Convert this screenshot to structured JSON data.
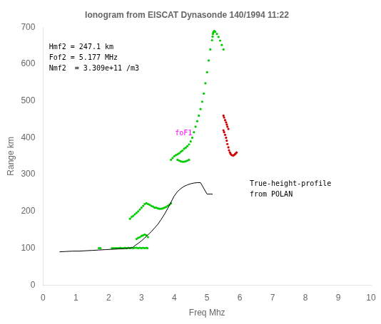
{
  "chart_data": {
    "type": "scatter",
    "title": "Ionogram from EISCAT Dynasonde 140/1994 11:22",
    "xlabel": "Freq Mhz",
    "ylabel": "Range km",
    "xlim": [
      0,
      10
    ],
    "ylim": [
      0,
      700
    ],
    "xticks": [
      0,
      1,
      2,
      3,
      4,
      5,
      6,
      7,
      8,
      9,
      10
    ],
    "yticks": [
      0,
      100,
      200,
      300,
      400,
      500,
      600,
      700
    ],
    "grid": false,
    "annotations": [
      {
        "text": "foF1",
        "x": 4.02,
        "y": 407,
        "color": "#FF00FF"
      },
      {
        "text": "True-height-profile\nfrom POLAN",
        "x": 6.3,
        "y": 270,
        "color": "#000000"
      },
      {
        "text": "Hmf2 = 247.1 km\nFof2 = 5.177 MHz\nNmf2  = 3.309e+11 /m3",
        "x": 0.18,
        "y": 640,
        "color": "#000000"
      }
    ],
    "series": [
      {
        "type": "line",
        "color": "#000000",
        "x": [
          0.5,
          0.7,
          0.9,
          1.1,
          1.3,
          1.5,
          1.7,
          1.9,
          2.1,
          2.3,
          2.5,
          2.6,
          2.7,
          2.75,
          2.8,
          2.9,
          3.0,
          3.1,
          3.2,
          3.3,
          3.4,
          3.5,
          3.6,
          3.7,
          3.8,
          3.9,
          4.0,
          4.1,
          4.15,
          4.2,
          4.3,
          4.4,
          4.5,
          4.6,
          4.7,
          4.8,
          5.0,
          5.1,
          5.15,
          5.17
        ],
        "values": [
          90,
          91,
          92,
          92,
          93,
          94,
          95,
          96,
          97,
          98,
          99,
          100,
          101,
          103,
          107,
          113,
          120,
          128,
          136,
          145,
          155,
          165,
          178,
          192,
          208,
          225,
          242,
          254,
          258,
          262,
          268,
          272,
          275,
          277,
          278,
          278,
          247,
          247,
          247,
          247
        ]
      },
      {
        "type": "scatter",
        "color": "#00CC00",
        "x": [
          1.7,
          1.75,
          2.1,
          2.15,
          2.2,
          2.25,
          2.3,
          2.35,
          2.4,
          2.45,
          2.5,
          2.55,
          2.6,
          2.65,
          2.7,
          2.75,
          2.8,
          2.85,
          2.9,
          2.95,
          3.0,
          3.05,
          3.1,
          3.15,
          3.18
        ],
        "values": [
          100,
          100,
          100,
          100,
          100,
          100,
          100,
          101,
          100,
          100,
          101,
          100,
          101,
          100,
          101,
          100,
          101,
          101,
          100,
          101,
          100,
          101,
          100,
          101,
          100
        ]
      },
      {
        "type": "scatter",
        "color": "#00CC00",
        "x": [
          2.85,
          2.9,
          2.95,
          3.0,
          3.05,
          3.1,
          3.15,
          3.2
        ],
        "values": [
          125,
          128,
          130,
          133,
          135,
          137,
          135,
          130
        ]
      },
      {
        "type": "scatter",
        "color": "#00CC00",
        "x": [
          2.65,
          2.7,
          2.75,
          2.8,
          2.85,
          2.9,
          2.95,
          3.0,
          3.05,
          3.1,
          3.15,
          3.2,
          3.25,
          3.3,
          3.35,
          3.4,
          3.45,
          3.5,
          3.55,
          3.6,
          3.65,
          3.7,
          3.75,
          3.8,
          3.85,
          3.9
        ],
        "values": [
          180,
          185,
          188,
          192,
          196,
          200,
          205,
          210,
          215,
          220,
          222,
          220,
          218,
          215,
          213,
          210,
          210,
          208,
          207,
          207,
          208,
          210,
          212,
          215,
          218,
          222
        ]
      },
      {
        "type": "scatter",
        "color": "#00CC00",
        "x": [
          3.9,
          3.95,
          4.0,
          4.05,
          4.1,
          4.15,
          4.2,
          4.25,
          4.3,
          4.35,
          4.4,
          4.45,
          4.5,
          4.55,
          4.6,
          4.65,
          4.7,
          4.75,
          4.8,
          4.85,
          4.9,
          4.95,
          5.0,
          5.05,
          5.1,
          5.15,
          5.17,
          5.18,
          5.19,
          5.2,
          5.22,
          5.25,
          5.3,
          5.35,
          5.4,
          5.45,
          5.5
        ],
        "values": [
          340,
          345,
          350,
          353,
          355,
          358,
          362,
          365,
          370,
          373,
          377,
          382,
          390,
          400,
          415,
          430,
          445,
          460,
          478,
          498,
          520,
          548,
          578,
          610,
          640,
          665,
          675,
          682,
          686,
          688,
          690,
          688,
          682,
          674,
          664,
          652,
          640
        ]
      },
      {
        "type": "scatter",
        "color": "#00CC00",
        "x": [
          4.1,
          4.15,
          4.2,
          4.25,
          4.3,
          4.35,
          4.4,
          4.45
        ],
        "values": [
          340,
          338,
          336,
          335,
          335,
          336,
          338,
          340
        ]
      },
      {
        "type": "scatter",
        "color": "#CC0000",
        "x": [
          5.5,
          5.52,
          5.55,
          5.58,
          5.6,
          5.62,
          5.65
        ],
        "values": [
          460,
          455,
          448,
          442,
          436,
          430,
          424
        ]
      },
      {
        "type": "scatter",
        "color": "#CC0000",
        "x": [
          5.5,
          5.52,
          5.55,
          5.58,
          5.6,
          5.62,
          5.65,
          5.67,
          5.7,
          5.72,
          5.75,
          5.78,
          5.8,
          5.82,
          5.85,
          5.87,
          5.9
        ],
        "values": [
          420,
          415,
          408,
          400,
          392,
          383,
          374,
          366,
          360,
          356,
          353,
          352,
          352,
          353,
          355,
          357,
          360
        ]
      }
    ]
  }
}
